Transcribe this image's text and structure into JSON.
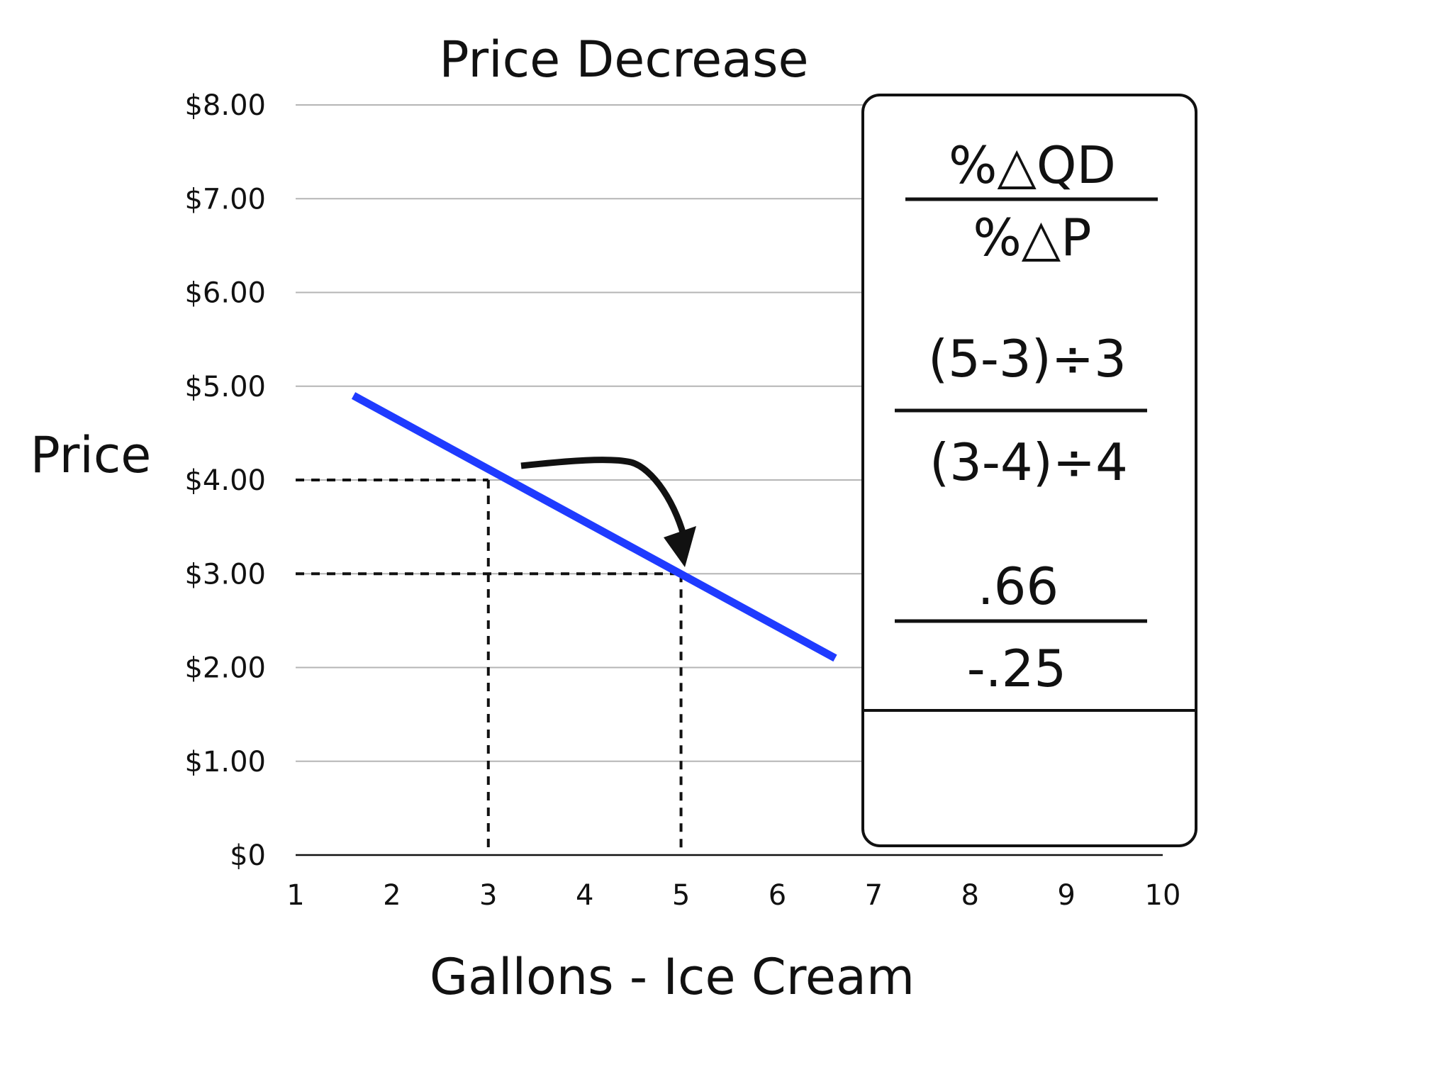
{
  "chart_data": {
    "type": "line",
    "title": "Price Decrease",
    "xlabel": "Gallons - Ice Cream",
    "ylabel": "Price",
    "x_ticks": [
      "1",
      "2",
      "3",
      "4",
      "5",
      "6",
      "7",
      "8",
      "9",
      "10"
    ],
    "y_ticks": [
      "$0",
      "$1.00",
      "$2.00",
      "$3.00",
      "$4.00",
      "$5.00",
      "$6.00",
      "$7.00",
      "$8.00"
    ],
    "xlim": [
      1,
      10
    ],
    "ylim": [
      0,
      8
    ],
    "grid": true,
    "series": [
      {
        "values": [
          [
            1.6,
            4.9
          ],
          [
            6.6,
            2.1
          ]
        ],
        "color": "#1f3bff"
      }
    ],
    "reference_points": [
      {
        "x": 3,
        "y": 4
      },
      {
        "x": 5,
        "y": 3
      }
    ]
  },
  "formula_box": {
    "fraction1": {
      "numerator": "%△QD",
      "denominator": "%△P"
    },
    "fraction2": {
      "numerator": "(5-3)÷3",
      "denominator": "(3-4)÷4"
    },
    "fraction3": {
      "numerator": ".66",
      "denominator": "-.25"
    }
  }
}
